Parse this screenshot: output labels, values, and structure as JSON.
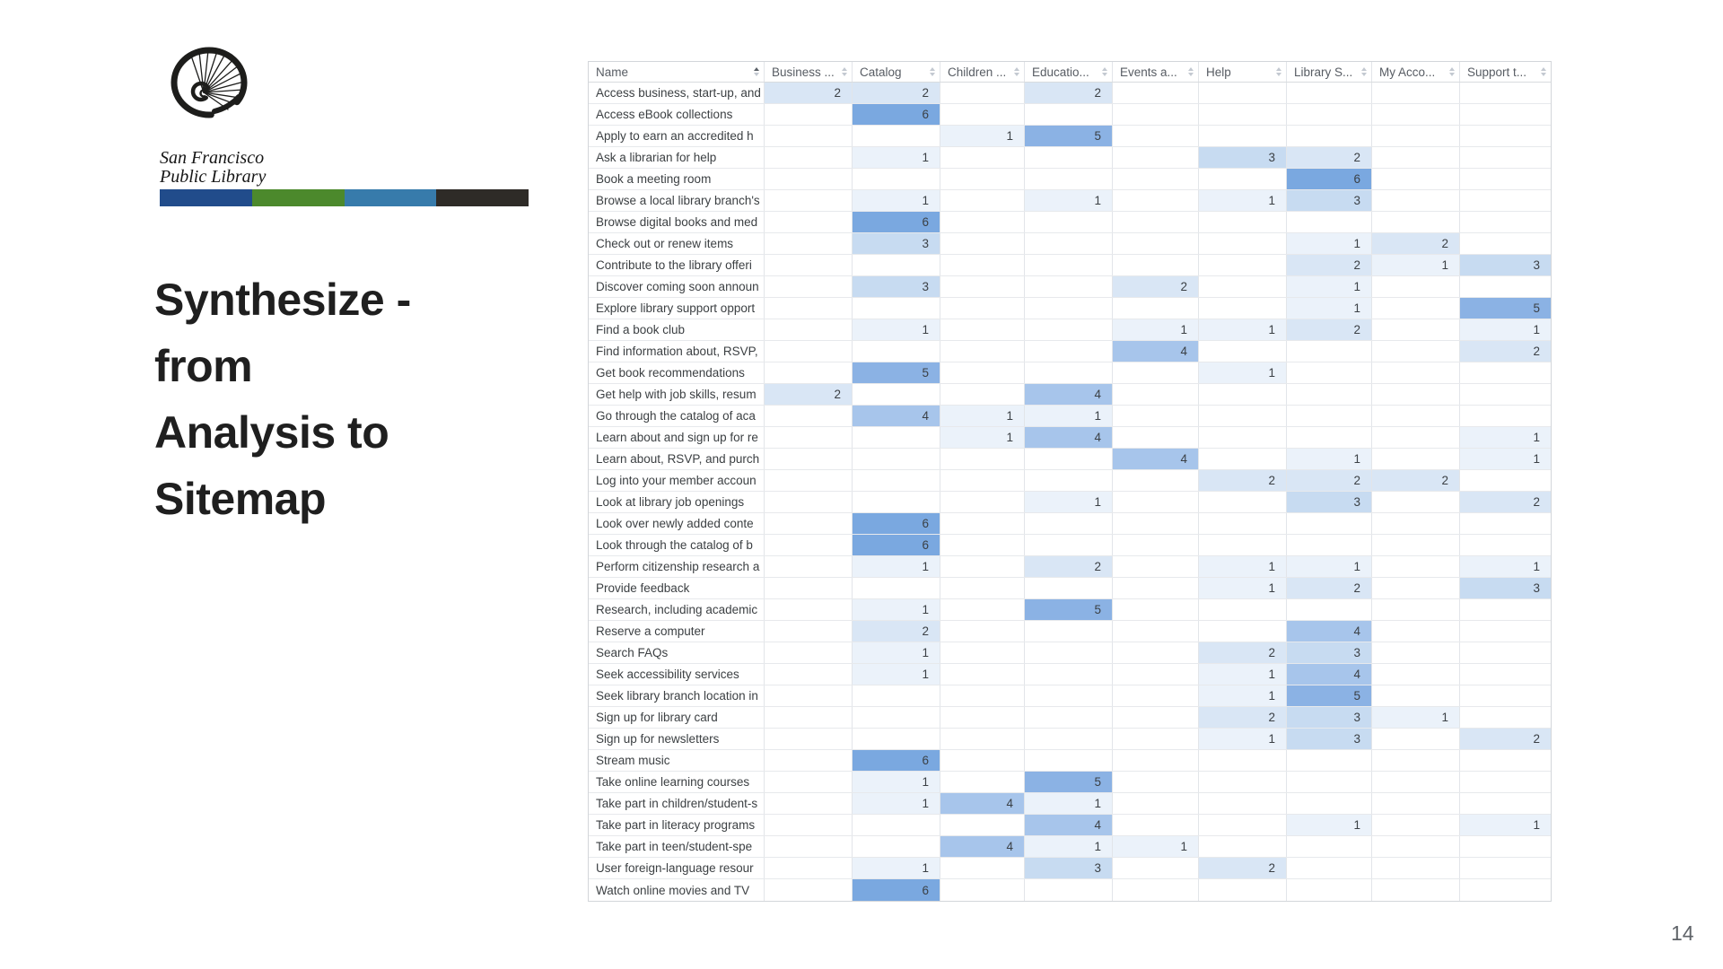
{
  "slide": {
    "title_lines": [
      "Synthesize -",
      "from",
      "Analysis to",
      "Sitemap"
    ],
    "page_number": "14"
  },
  "logo": {
    "org_line1": "San Francisco",
    "org_line2": "Public Library",
    "bar_colors": [
      "#214c8b",
      "#4c892c",
      "#377bab",
      "#2e2b27"
    ]
  },
  "table": {
    "columns": [
      {
        "key": "name",
        "label": "Name",
        "sort": "asc"
      },
      {
        "key": "business",
        "label": "Business ...",
        "sort": "none"
      },
      {
        "key": "catalog",
        "label": "Catalog",
        "sort": "none"
      },
      {
        "key": "children",
        "label": "Children ...",
        "sort": "none"
      },
      {
        "key": "education",
        "label": "Educatio...",
        "sort": "none"
      },
      {
        "key": "events",
        "label": "Events a...",
        "sort": "none"
      },
      {
        "key": "help",
        "label": "Help",
        "sort": "none"
      },
      {
        "key": "library-services",
        "label": "Library S...",
        "sort": "none"
      },
      {
        "key": "my-account",
        "label": "My Acco...",
        "sort": "none"
      },
      {
        "key": "support",
        "label": "Support t...",
        "sort": "none"
      }
    ],
    "heat_colors": {
      "1": "#ebf2fa",
      "2": "#d9e6f5",
      "3": "#c7dbf1",
      "4": "#a7c5eb",
      "5": "#8bb2e4",
      "6": "#7aa8e0"
    },
    "rows": [
      {
        "name": "Access business, start-up, and",
        "values": [
          2,
          2,
          null,
          2,
          null,
          null,
          null,
          null,
          null
        ]
      },
      {
        "name": "Access eBook collections",
        "values": [
          null,
          6,
          null,
          null,
          null,
          null,
          null,
          null,
          null
        ]
      },
      {
        "name": "Apply to earn an accredited h",
        "values": [
          null,
          null,
          1,
          5,
          null,
          null,
          null,
          null,
          null
        ]
      },
      {
        "name": "Ask a librarian for help",
        "values": [
          null,
          1,
          null,
          null,
          null,
          3,
          2,
          null,
          null
        ]
      },
      {
        "name": "Book a meeting room",
        "values": [
          null,
          null,
          null,
          null,
          null,
          null,
          6,
          null,
          null
        ]
      },
      {
        "name": "Browse a local library branch's",
        "values": [
          null,
          1,
          null,
          1,
          null,
          1,
          3,
          null,
          null
        ]
      },
      {
        "name": "Browse digital books and med",
        "values": [
          null,
          6,
          null,
          null,
          null,
          null,
          null,
          null,
          null
        ]
      },
      {
        "name": "Check out or renew items",
        "values": [
          null,
          3,
          null,
          null,
          null,
          null,
          1,
          2,
          null
        ]
      },
      {
        "name": "Contribute to the library offeri",
        "values": [
          null,
          null,
          null,
          null,
          null,
          null,
          2,
          1,
          3
        ]
      },
      {
        "name": "Discover coming soon announ",
        "values": [
          null,
          3,
          null,
          null,
          2,
          null,
          1,
          null,
          null
        ]
      },
      {
        "name": "Explore library support opport",
        "values": [
          null,
          null,
          null,
          null,
          null,
          null,
          1,
          null,
          5
        ]
      },
      {
        "name": "Find a book club",
        "values": [
          null,
          1,
          null,
          null,
          1,
          1,
          2,
          null,
          1
        ]
      },
      {
        "name": "Find information about, RSVP,",
        "values": [
          null,
          null,
          null,
          null,
          4,
          null,
          null,
          null,
          2
        ]
      },
      {
        "name": "Get book recommendations",
        "values": [
          null,
          5,
          null,
          null,
          null,
          1,
          null,
          null,
          null
        ]
      },
      {
        "name": "Get help with job skills, resum",
        "values": [
          2,
          null,
          null,
          4,
          null,
          null,
          null,
          null,
          null
        ]
      },
      {
        "name": "Go through the catalog of aca",
        "values": [
          null,
          4,
          1,
          1,
          null,
          null,
          null,
          null,
          null
        ]
      },
      {
        "name": "Learn about and sign up for re",
        "values": [
          null,
          null,
          1,
          4,
          null,
          null,
          null,
          null,
          1
        ]
      },
      {
        "name": "Learn about, RSVP, and purch",
        "values": [
          null,
          null,
          null,
          null,
          4,
          null,
          1,
          null,
          1
        ]
      },
      {
        "name": "Log into your member accoun",
        "values": [
          null,
          null,
          null,
          null,
          null,
          2,
          2,
          2,
          null
        ]
      },
      {
        "name": "Look at library job openings",
        "values": [
          null,
          null,
          null,
          1,
          null,
          null,
          3,
          null,
          2
        ]
      },
      {
        "name": "Look over newly added conte",
        "values": [
          null,
          6,
          null,
          null,
          null,
          null,
          null,
          null,
          null
        ]
      },
      {
        "name": "Look through the catalog of b",
        "values": [
          null,
          6,
          null,
          null,
          null,
          null,
          null,
          null,
          null
        ]
      },
      {
        "name": "Perform citizenship research a",
        "values": [
          null,
          1,
          null,
          2,
          null,
          1,
          1,
          null,
          1
        ]
      },
      {
        "name": "Provide feedback",
        "values": [
          null,
          null,
          null,
          null,
          null,
          1,
          2,
          null,
          3
        ]
      },
      {
        "name": "Research, including academic",
        "values": [
          null,
          1,
          null,
          5,
          null,
          null,
          null,
          null,
          null
        ]
      },
      {
        "name": "Reserve a computer",
        "values": [
          null,
          2,
          null,
          null,
          null,
          null,
          4,
          null,
          null
        ]
      },
      {
        "name": "Search FAQs",
        "values": [
          null,
          1,
          null,
          null,
          null,
          2,
          3,
          null,
          null
        ]
      },
      {
        "name": "Seek accessibility services",
        "values": [
          null,
          1,
          null,
          null,
          null,
          1,
          4,
          null,
          null
        ]
      },
      {
        "name": "Seek library branch location in",
        "values": [
          null,
          null,
          null,
          null,
          null,
          1,
          5,
          null,
          null
        ]
      },
      {
        "name": "Sign up for library card",
        "values": [
          null,
          null,
          null,
          null,
          null,
          2,
          3,
          1,
          null
        ]
      },
      {
        "name": "Sign up for newsletters",
        "values": [
          null,
          null,
          null,
          null,
          null,
          1,
          3,
          null,
          2
        ]
      },
      {
        "name": "Stream music",
        "values": [
          null,
          6,
          null,
          null,
          null,
          null,
          null,
          null,
          null
        ]
      },
      {
        "name": "Take online learning courses",
        "values": [
          null,
          1,
          null,
          5,
          null,
          null,
          null,
          null,
          null
        ]
      },
      {
        "name": "Take part in children/student-s",
        "values": [
          null,
          1,
          4,
          1,
          null,
          null,
          null,
          null,
          null
        ]
      },
      {
        "name": "Take part in literacy programs",
        "values": [
          null,
          null,
          null,
          4,
          null,
          null,
          1,
          null,
          1
        ]
      },
      {
        "name": "Take part in teen/student-spe",
        "values": [
          null,
          null,
          4,
          1,
          1,
          null,
          null,
          null,
          null
        ]
      },
      {
        "name": "User foreign-language resour",
        "values": [
          null,
          1,
          null,
          3,
          null,
          2,
          null,
          null,
          null
        ]
      },
      {
        "name": "Watch online movies and TV",
        "values": [
          null,
          6,
          null,
          null,
          null,
          null,
          null,
          null,
          null
        ]
      }
    ]
  }
}
